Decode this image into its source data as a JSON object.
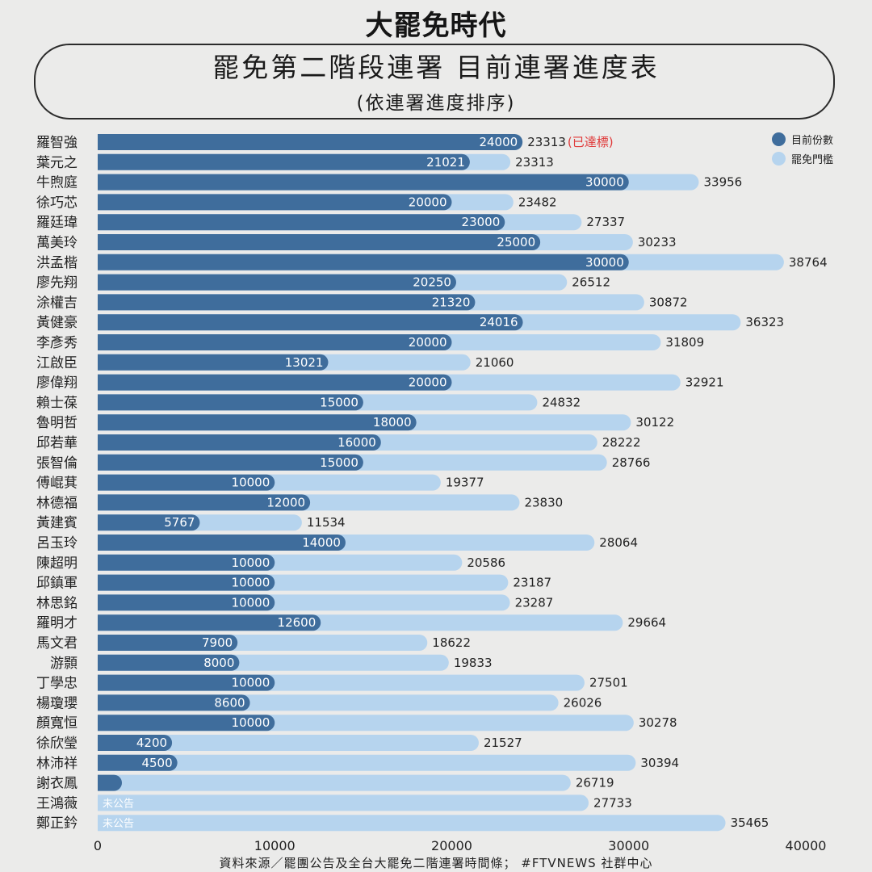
{
  "header": {
    "brand": "大罷免時代",
    "title": "罷免第二階段連署 目前連署進度表",
    "subtitle": "(依連署進度排序)"
  },
  "legend": [
    {
      "label": "目前份數",
      "color": "#3f6d9c"
    },
    {
      "label": "罷免門檻",
      "color": "#b6d4ee"
    }
  ],
  "footer": {
    "source": "資料來源／罷團公告及全台大罷免二階連署時間條； #FTVNEWS 社群中心"
  },
  "chart_data": {
    "type": "bar",
    "orientation": "horizontal",
    "xlim": [
      0,
      40000
    ],
    "xticks": [
      "0",
      "10000",
      "20000",
      "30000",
      "40000"
    ],
    "colors": {
      "current": "#3f6d9c",
      "threshold": "#b6d4ee",
      "achieved_note": "#e03b3b"
    },
    "categories": [
      "羅智強",
      "葉元之",
      "牛煦庭",
      "徐巧芯",
      "羅廷瑋",
      "萬美玲",
      "洪孟楷",
      "廖先翔",
      "涂權吉",
      "黃健豪",
      "李彥秀",
      "江啟臣",
      "廖偉翔",
      "賴士葆",
      "魯明哲",
      "邱若華",
      "張智倫",
      "傅崐萁",
      "林德福",
      "黃建賓",
      "呂玉玲",
      "陳超明",
      "邱鎮軍",
      "林思銘",
      "羅明才",
      "馬文君",
      "游顥",
      "丁學忠",
      "楊瓊瓔",
      "顏寬恒",
      "徐欣瑩",
      "林沛祥",
      "謝衣鳳",
      "王鴻薇",
      "鄭正鈐"
    ],
    "series": [
      {
        "name": "目前份數",
        "values": [
          24000,
          21021,
          30000,
          20000,
          23000,
          25000,
          30000,
          20250,
          21320,
          24016,
          20000,
          13021,
          20000,
          15000,
          18000,
          16000,
          15000,
          10000,
          12000,
          5767,
          14000,
          10000,
          10000,
          10000,
          12600,
          7900,
          8000,
          10000,
          8600,
          10000,
          4200,
          4500,
          null,
          null,
          null
        ],
        "labels": [
          "24000",
          "21021",
          "30000",
          "20000",
          "23000",
          "25000",
          "30000",
          "20250",
          "21320",
          "24016",
          "20000",
          "13021",
          "20000",
          "15000",
          "18000",
          "16000",
          "15000",
          "10000",
          "12000",
          "5767",
          "14000",
          "10000",
          "10000",
          "10000",
          "12600",
          "7900",
          "8000",
          "10000",
          "8600",
          "10000",
          "4200",
          "4500",
          "",
          "未公告",
          "未公告"
        ]
      },
      {
        "name": "罷免門檻",
        "values": [
          23313,
          23313,
          33956,
          23482,
          27337,
          30233,
          38764,
          26512,
          30872,
          36323,
          31809,
          21060,
          32921,
          24832,
          30122,
          28222,
          28766,
          19377,
          23830,
          11534,
          28064,
          20586,
          23187,
          23287,
          29664,
          18622,
          19833,
          27501,
          26026,
          30278,
          21527,
          30394,
          26719,
          27733,
          35465
        ],
        "labels": [
          "23313",
          "23313",
          "33956",
          "23482",
          "27337",
          "30233",
          "38764",
          "26512",
          "30872",
          "36323",
          "31809",
          "21060",
          "32921",
          "24832",
          "30122",
          "28222",
          "28766",
          "19377",
          "23830",
          "11534",
          "28064",
          "20586",
          "23187",
          "23287",
          "29664",
          "18622",
          "19833",
          "27501",
          "26026",
          "30278",
          "21527",
          "30394",
          "26719",
          "27733",
          "35465"
        ]
      }
    ],
    "annotations": [
      {
        "category": "羅智強",
        "text": "(已達標)"
      }
    ]
  }
}
